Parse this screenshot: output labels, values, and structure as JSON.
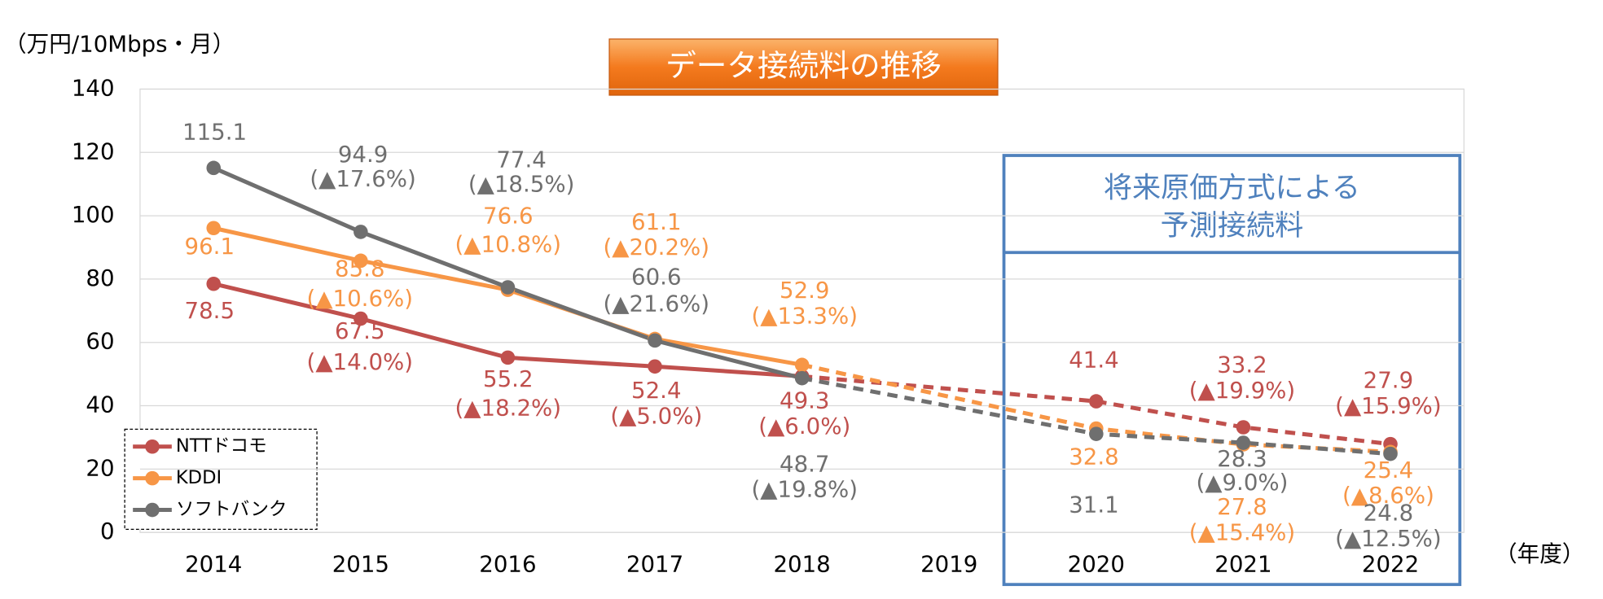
{
  "chart_data": {
    "type": "line",
    "title": "データ接続料の推移",
    "y_unit_label": "（万円/10Mbps・月）",
    "x_unit_label": "（年度）",
    "x": [
      2014,
      2015,
      2016,
      2017,
      2018,
      2020,
      2021,
      2022
    ],
    "xlim": [
      2013.5,
      2022.5
    ],
    "xticks": [
      2014,
      2015,
      2016,
      2017,
      2018,
      2019,
      2020,
      2021,
      2022
    ],
    "ylim": [
      0,
      140
    ],
    "yticks": [
      0,
      20,
      40,
      60,
      80,
      100,
      120,
      140
    ],
    "grid": true,
    "dash_from_x": 2018,
    "legend_position": "lower left",
    "annotation": [
      "将来原価方式による",
      "予測接続料"
    ],
    "series": [
      {
        "name": "NTTドコモ",
        "color": "#c0504d",
        "values": [
          78.5,
          67.5,
          55.2,
          52.4,
          49.3,
          41.4,
          33.2,
          27.9
        ],
        "change_labels": [
          null,
          "(▲14.0%)",
          "(▲18.2%)",
          "(▲5.0%)",
          "(▲6.0%)",
          null,
          "(▲19.9%)",
          "(▲15.9%)"
        ]
      },
      {
        "name": "KDDI",
        "color": "#f79646",
        "values": [
          96.1,
          85.8,
          76.6,
          61.1,
          52.9,
          32.8,
          27.8,
          25.4
        ],
        "change_labels": [
          null,
          "(▲10.6%)",
          "(▲10.8%)",
          "(▲20.2%)",
          "(▲13.3%)",
          null,
          "(▲15.4%)",
          "(▲8.6%)"
        ]
      },
      {
        "name": "ソフトバンク",
        "color": "#6f6f6f",
        "values": [
          115.1,
          94.9,
          77.4,
          60.6,
          48.7,
          31.1,
          28.3,
          24.8
        ],
        "change_labels": [
          null,
          "(▲17.6%)",
          "(▲18.5%)",
          "(▲21.6%)",
          "(▲19.8%)",
          null,
          "(▲9.0%)",
          "(▲12.5%)"
        ]
      }
    ]
  }
}
